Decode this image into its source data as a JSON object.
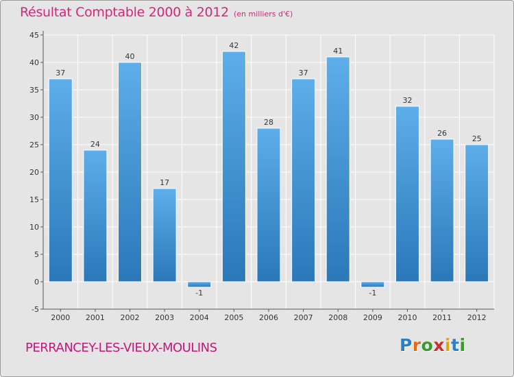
{
  "chart_data": {
    "type": "bar",
    "title": "Résultat Comptable 2000 à 2012",
    "subtitle": "(en milliers d'€)",
    "categories": [
      "2000",
      "2001",
      "2002",
      "2003",
      "2004",
      "2005",
      "2006",
      "2007",
      "2008",
      "2009",
      "2010",
      "2011",
      "2012"
    ],
    "values": [
      37,
      24,
      40,
      17,
      -1,
      42,
      28,
      37,
      41,
      -1,
      32,
      26,
      25
    ],
    "data_labels": [
      "37",
      "24",
      "40",
      "17",
      "-1",
      "42",
      "28",
      "37",
      "41",
      "-1",
      "32",
      "26",
      "25"
    ],
    "xlabel": "",
    "ylabel": "",
    "ylim": [
      -5,
      45
    ],
    "yticks": [
      -5,
      0,
      5,
      10,
      15,
      20,
      25,
      30,
      35,
      40,
      45
    ],
    "grid": true,
    "colors": {
      "bar_light": "#5aaae6",
      "bar_dark": "#2a78b8",
      "title": "#d0287a"
    }
  },
  "footer": {
    "place_name": "PERRANCEY-LES-VIEUX-MOULINS"
  },
  "brand": {
    "letters": [
      "P",
      "r",
      "o",
      "x",
      "i",
      "t",
      "i"
    ],
    "colors": [
      "#2a7fc9",
      "#e86a10",
      "#3a9a2c",
      "#d42a2a",
      "#e0a800",
      "#2a7fc9",
      "#3a9a2c"
    ]
  }
}
